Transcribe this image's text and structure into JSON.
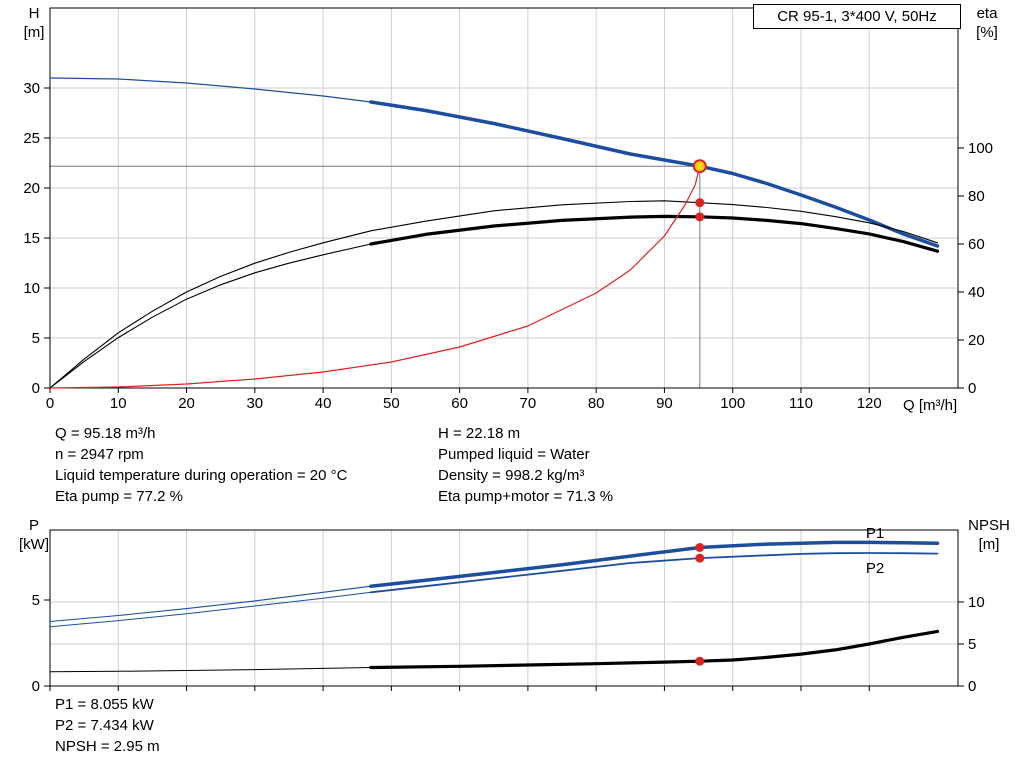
{
  "title_box": {
    "text": "CR 95-1, 3*400 V, 50Hz"
  },
  "axis_labels": {
    "h": [
      "H",
      "[m]"
    ],
    "eta": [
      "eta",
      "[%]"
    ],
    "q": "Q [m³/h]",
    "p": [
      "P",
      "[kW]"
    ],
    "npsh": [
      "NPSH",
      "[m]"
    ]
  },
  "info_top": {
    "left": [
      "Q = 95.18 m³/h",
      "n = 2947 rpm",
      "Liquid temperature during operation = 20 °C",
      "Eta pump = 77.2 %"
    ],
    "right": [
      "H = 22.18 m",
      "Pumped liquid = Water",
      "Density = 998.2 kg/m³",
      "Eta pump+motor = 71.3 %"
    ]
  },
  "info_bottom": [
    "P1 = 8.055 kW",
    "P2 = 7.434 kW",
    "NPSH = 2.95 m"
  ],
  "colors": {
    "curve_blue": "#1d4e9e",
    "curve_black": "#000000",
    "curve_red": "#dd2222",
    "duty_fill": "#ffd400",
    "grid": "#cfcfcf",
    "crosshair": "#7a7a7a"
  },
  "duty_point": {
    "q": 95.18,
    "h": 22.18,
    "eta_pump": 77.2,
    "eta_pump_motor": 71.3,
    "p1": 8.055,
    "p2": 7.434,
    "npsh": 2.95
  },
  "chart_data": [
    {
      "type": "line",
      "name": "qh-eta-chart",
      "title": "CR 95-1, 3*400 V, 50Hz",
      "xlabel": "Q [m³/h]",
      "ylabel": "H [m]",
      "y2label": "eta [%]",
      "plot": {
        "x0": 50,
        "y0": 8,
        "x1": 958,
        "y1": 388
      },
      "x": {
        "min": 0,
        "max": 133,
        "ticks": [
          0,
          10,
          20,
          30,
          40,
          50,
          60,
          70,
          80,
          90,
          100,
          110,
          120
        ],
        "labels": true,
        "grid": true
      },
      "y1": {
        "min": 0,
        "max": 38,
        "ticks": [
          0,
          5,
          10,
          15,
          20,
          25,
          30
        ],
        "grid": true
      },
      "y2": {
        "min": 0,
        "max": 158.3,
        "ticks": [
          0,
          20,
          40,
          60,
          80,
          100
        ],
        "grid": false
      },
      "series": [
        {
          "name": "qh-curve-thin",
          "axis": "y1",
          "color": "#1d4e9e",
          "width": 1.2,
          "x": [
            0,
            10,
            20,
            30,
            40,
            47
          ],
          "y": [
            31,
            30.9,
            30.5,
            29.9,
            29.2,
            28.6
          ]
        },
        {
          "name": "qh-curve",
          "axis": "y1",
          "color": "#1d4e9e",
          "width": 3.5,
          "x": [
            47,
            55,
            65,
            75,
            85,
            90,
            95.18,
            100,
            105,
            110,
            115,
            120,
            125,
            130
          ],
          "y": [
            28.6,
            27.75,
            26.45,
            24.95,
            23.4,
            22.8,
            22.18,
            21.45,
            20.45,
            19.3,
            18.1,
            16.8,
            15.4,
            14.2
          ]
        },
        {
          "name": "eta-pump-curve",
          "axis": "y2",
          "color": "#000000",
          "width": 1.1,
          "x": [
            0,
            5,
            10,
            15,
            20,
            25,
            30,
            35,
            40,
            47,
            55,
            65,
            75,
            85,
            90,
            95.18,
            100,
            105,
            110,
            115,
            120,
            125,
            130
          ],
          "y": [
            0,
            12,
            23,
            32,
            40,
            46.5,
            52,
            56.5,
            60.5,
            65.5,
            69.5,
            73.8,
            76.3,
            77.7,
            78,
            77.2,
            76.4,
            75.2,
            73.6,
            71.4,
            68.8,
            65.2,
            60.5
          ]
        },
        {
          "name": "eta-pump-motor-curve-thin",
          "axis": "y2",
          "color": "#000000",
          "width": 1.1,
          "x": [
            0,
            5,
            10,
            15,
            20,
            25,
            30,
            35,
            40,
            47
          ],
          "y": [
            0,
            11,
            21,
            29.5,
            37,
            43,
            48,
            52,
            55.5,
            60
          ]
        },
        {
          "name": "eta-pump-motor-curve",
          "axis": "y2",
          "color": "#000000",
          "width": 3.2,
          "x": [
            47,
            55,
            65,
            75,
            85,
            90,
            95.18,
            100,
            105,
            110,
            115,
            120,
            125,
            130
          ],
          "y": [
            60,
            64,
            67.5,
            69.8,
            71.2,
            71.5,
            71.3,
            70.8,
            69.8,
            68.5,
            66.5,
            64.2,
            61,
            57
          ]
        },
        {
          "name": "operating-curve",
          "axis": "y1",
          "color": "#dd2222",
          "width": 1.2,
          "x": [
            0,
            10,
            20,
            30,
            40,
            50,
            60,
            70,
            80,
            85,
            90,
            93,
            94.5,
            95.18
          ],
          "y": [
            0,
            0.1,
            0.4,
            0.9,
            1.6,
            2.6,
            4.1,
            6.2,
            9.5,
            11.8,
            15.2,
            18.3,
            20.3,
            22.18
          ]
        }
      ],
      "crosshair": [
        {
          "axis": "y1",
          "points": [
            [
              0,
              22.18
            ],
            [
              95.18,
              22.18
            ]
          ]
        },
        {
          "axis": "y1",
          "points": [
            [
              95.18,
              22.18
            ],
            [
              95.18,
              0
            ]
          ]
        }
      ],
      "markers": [
        {
          "x": 95.18,
          "v": 22.18,
          "axis": "y1",
          "kind": "duty",
          "name": "duty-point"
        },
        {
          "x": 95.18,
          "v": 77.2,
          "axis": "y2",
          "kind": "dot",
          "name": "eta-pump-point"
        },
        {
          "x": 95.18,
          "v": 71.3,
          "axis": "y2",
          "kind": "dot",
          "name": "eta-pump-motor-point"
        }
      ],
      "labels": []
    },
    {
      "type": "line",
      "name": "power-npsh-chart",
      "xlabel": "Q [m³/h]",
      "ylabel": "P [kW]",
      "y2label": "NPSH [m]",
      "plot": {
        "x0": 50,
        "y0": 530,
        "x1": 958,
        "y1": 686
      },
      "x": {
        "min": 0,
        "max": 133,
        "ticks": [
          0,
          10,
          20,
          30,
          40,
          50,
          60,
          70,
          80,
          90,
          100,
          110,
          120
        ],
        "labels": false,
        "grid": true
      },
      "y1": {
        "min": 0,
        "max": 9.07,
        "ticks": [
          0,
          5
        ],
        "grid": false
      },
      "y2": {
        "min": 0,
        "max": 18.57,
        "ticks": [
          0,
          5,
          10
        ],
        "grid": true
      },
      "series": [
        {
          "name": "p1-curve-thin",
          "axis": "y1",
          "color": "#1d4e9e",
          "width": 1.1,
          "x": [
            0,
            10,
            20,
            30,
            40,
            47
          ],
          "y": [
            3.75,
            4.1,
            4.5,
            4.95,
            5.45,
            5.8
          ]
        },
        {
          "name": "p1-curve",
          "axis": "y1",
          "color": "#1d4e9e",
          "width": 3.5,
          "x": [
            47,
            55,
            65,
            75,
            85,
            95.18,
            105,
            110,
            115,
            120,
            125,
            130
          ],
          "y": [
            5.8,
            6.15,
            6.6,
            7.05,
            7.55,
            8.055,
            8.25,
            8.3,
            8.35,
            8.35,
            8.33,
            8.3
          ]
        },
        {
          "name": "p2-curve-thin",
          "axis": "y1",
          "color": "#1d4e9e",
          "width": 1,
          "x": [
            0,
            10,
            20,
            30,
            40,
            47
          ],
          "y": [
            3.45,
            3.8,
            4.2,
            4.65,
            5.1,
            5.45
          ]
        },
        {
          "name": "p2-curve",
          "axis": "y1",
          "color": "#1d4e9e",
          "width": 1.8,
          "x": [
            47,
            55,
            65,
            75,
            85,
            95.18,
            105,
            110,
            115,
            120,
            125,
            130
          ],
          "y": [
            5.45,
            5.8,
            6.25,
            6.7,
            7.15,
            7.434,
            7.6,
            7.68,
            7.72,
            7.73,
            7.72,
            7.7
          ]
        },
        {
          "name": "npsh-curve-thin",
          "axis": "y2",
          "color": "#000000",
          "width": 1,
          "x": [
            0,
            10,
            20,
            30,
            40,
            47
          ],
          "y": [
            1.7,
            1.75,
            1.85,
            1.95,
            2.1,
            2.2
          ]
        },
        {
          "name": "npsh-curve",
          "axis": "y2",
          "color": "#000000",
          "width": 3.2,
          "x": [
            47,
            60,
            70,
            80,
            90,
            95.18,
            100,
            105,
            110,
            115,
            120,
            125,
            130
          ],
          "y": [
            2.2,
            2.35,
            2.5,
            2.65,
            2.85,
            2.95,
            3.1,
            3.4,
            3.8,
            4.3,
            5.0,
            5.8,
            6.5
          ]
        }
      ],
      "crosshair": [],
      "markers": [
        {
          "x": 95.18,
          "v": 8.055,
          "axis": "y1",
          "kind": "dot",
          "name": "p1-point"
        },
        {
          "x": 95.18,
          "v": 7.434,
          "axis": "y1",
          "kind": "dot",
          "name": "p2-point"
        },
        {
          "x": 95.18,
          "v": 2.95,
          "axis": "y2",
          "kind": "dot",
          "name": "npsh-point"
        }
      ],
      "labels": [
        {
          "text": "P1",
          "x": 119.5,
          "v": 8.9,
          "axis": "y1",
          "color": "#1d4e9e"
        },
        {
          "text": "P2",
          "x": 119.5,
          "v": 6.85,
          "axis": "y1",
          "color": "#1d4e9e"
        }
      ]
    }
  ]
}
